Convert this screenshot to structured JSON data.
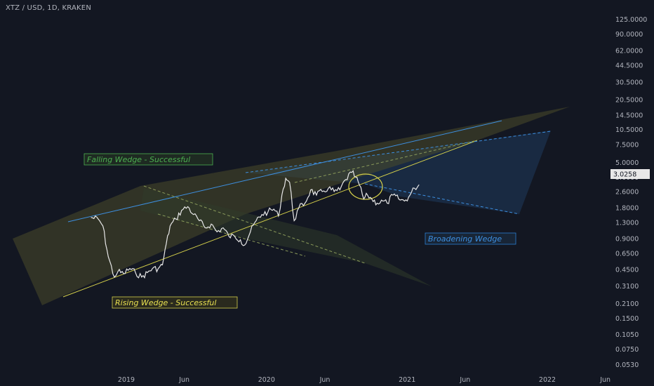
{
  "chart_data": {
    "type": "line",
    "title": "XTZ / USD, 1D, KRAKEN",
    "current_price": "3.0258",
    "yscale": "log",
    "ylim": [
      0.045,
      170
    ],
    "y_ticks": [
      "125.0000",
      "90.0000",
      "62.0000",
      "44.5000",
      "30.5000",
      "20.5000",
      "14.5000",
      "10.5000",
      "7.5000",
      "5.0000",
      "3.6000",
      "2.6000",
      "1.8000",
      "1.3000",
      "0.9000",
      "0.6500",
      "0.4500",
      "0.3100",
      "0.2100",
      "0.1500",
      "0.1050",
      "0.0750",
      "0.0530"
    ],
    "x_ticks": [
      "2019",
      "Jun",
      "2020",
      "Jun",
      "2021",
      "Jun",
      "2022",
      "Jun"
    ],
    "series": [
      {
        "x": [
          "2018-10-01",
          "2018-10-20",
          "2018-11-01",
          "2018-11-15",
          "2018-12-01",
          "2018-12-10",
          "2018-12-25",
          "2019-01-10",
          "2019-01-25",
          "2019-02-10",
          "2019-02-25",
          "2019-03-10",
          "2019-03-25",
          "2019-04-05",
          "2019-04-15",
          "2019-04-25",
          "2019-05-10",
          "2019-05-25",
          "2019-06-10",
          "2019-06-25",
          "2019-07-10",
          "2019-07-25",
          "2019-08-10",
          "2019-08-25",
          "2019-09-10",
          "2019-09-25",
          "2019-10-10",
          "2019-10-25",
          "2019-11-05",
          "2019-11-20",
          "2019-12-05",
          "2019-12-20",
          "2020-01-05",
          "2020-01-20",
          "2020-02-01",
          "2020-02-10",
          "2020-02-20",
          "2020-03-01",
          "2020-03-13",
          "2020-03-25",
          "2020-04-10",
          "2020-04-25",
          "2020-05-10",
          "2020-05-25",
          "2020-06-10",
          "2020-06-25",
          "2020-07-10",
          "2020-07-25",
          "2020-08-10",
          "2020-08-20",
          "2020-08-30",
          "2020-09-10",
          "2020-09-20",
          "2020-10-01",
          "2020-10-15",
          "2020-10-30",
          "2020-11-10",
          "2020-11-25",
          "2020-12-10",
          "2020-12-25",
          "2021-01-05",
          "2021-01-20",
          "2021-02-01"
        ],
        "y": [
          1.45,
          1.4,
          1.2,
          0.6,
          0.38,
          0.43,
          0.41,
          0.46,
          0.42,
          0.38,
          0.42,
          0.46,
          0.46,
          0.5,
          0.8,
          1.2,
          1.4,
          1.7,
          1.85,
          1.55,
          1.35,
          1.15,
          1.25,
          1.05,
          1.15,
          0.95,
          0.95,
          0.88,
          0.78,
          1.05,
          1.35,
          1.55,
          1.65,
          1.75,
          1.5,
          2.4,
          3.5,
          3.2,
          1.35,
          1.8,
          2.0,
          2.7,
          2.4,
          2.6,
          2.8,
          2.6,
          2.7,
          3.4,
          4.0,
          3.6,
          3.0,
          2.2,
          2.4,
          2.2,
          2.0,
          2.1,
          2.0,
          2.4,
          2.2,
          2.1,
          2.3,
          2.8,
          3.03
        ]
      }
    ],
    "annotations": {
      "falling_wedge": "Falling Wedge - Successful",
      "rising_wedge": "Rising Wedge - Successful",
      "broadening_wedge": "Broadening Wedge"
    },
    "colors": {
      "background": "#131722",
      "price_line": "#e8e8e8",
      "rising_wedge": "#d4cf4a",
      "falling_wedge": "#4caf50",
      "broadening_wedge": "#2a7fd4",
      "blue_line": "#3d8fe0"
    }
  }
}
